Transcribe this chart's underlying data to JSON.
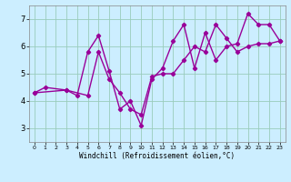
{
  "xlabel": "Windchill (Refroidissement éolien,°C)",
  "xlim": [
    -0.5,
    23.5
  ],
  "ylim": [
    2.5,
    7.5
  ],
  "yticks": [
    3,
    4,
    5,
    6,
    7
  ],
  "xticks": [
    0,
    1,
    2,
    3,
    4,
    5,
    6,
    7,
    8,
    9,
    10,
    11,
    12,
    13,
    14,
    15,
    16,
    17,
    18,
    19,
    20,
    21,
    22,
    23
  ],
  "line1_x": [
    0,
    1,
    3,
    4,
    5,
    6,
    7,
    8,
    9,
    10,
    11,
    12,
    13,
    14,
    15,
    16,
    17,
    18,
    19,
    20,
    21,
    22,
    23
  ],
  "line1_y": [
    4.3,
    4.5,
    4.4,
    4.2,
    5.8,
    6.4,
    5.1,
    3.7,
    4.0,
    3.1,
    4.8,
    5.2,
    6.2,
    6.8,
    5.2,
    6.5,
    5.5,
    6.0,
    6.1,
    7.2,
    6.8,
    6.8,
    6.2
  ],
  "line2_x": [
    0,
    3,
    5,
    6,
    7,
    8,
    9,
    10,
    11,
    12,
    13,
    14,
    15,
    16,
    17,
    18,
    19,
    20,
    21,
    22,
    23
  ],
  "line2_y": [
    4.3,
    4.4,
    4.2,
    5.8,
    4.8,
    4.3,
    3.7,
    3.5,
    4.9,
    5.0,
    5.0,
    5.5,
    6.0,
    5.8,
    6.8,
    6.3,
    5.8,
    6.0,
    6.1,
    6.1,
    6.2
  ],
  "line_color": "#990099",
  "bg_color": "#cceeff",
  "grid_color": "#99ccbb",
  "marker": "D",
  "markersize": 2.2,
  "linewidth": 1.0
}
